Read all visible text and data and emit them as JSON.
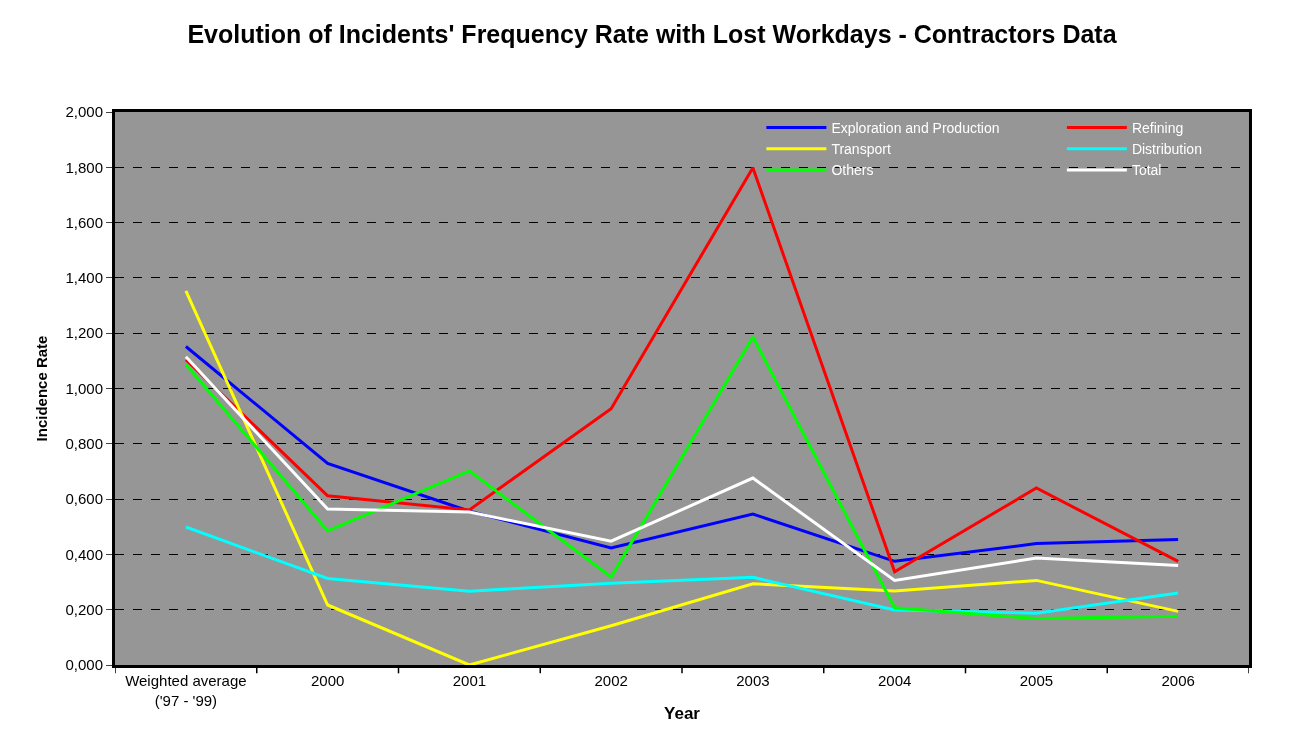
{
  "chart_data": {
    "type": "line",
    "title": "Evolution of Incidents' Frequency Rate with Lost Workdays - Contractors Data",
    "xlabel": "Year",
    "ylabel": "Incidence Rate",
    "categories": [
      "Weighted average\n('97 - '99)",
      "2000",
      "2001",
      "2002",
      "2003",
      "2004",
      "2005",
      "2006"
    ],
    "series": [
      {
        "name": "Exploration and Production",
        "color": "#0000ff",
        "values": [
          1.152,
          0.729,
          0.556,
          0.423,
          0.546,
          0.375,
          0.439,
          0.454
        ]
      },
      {
        "name": "Refining",
        "color": "#ff0000",
        "values": [
          1.104,
          0.612,
          0.561,
          0.927,
          1.798,
          0.337,
          0.64,
          0.375
        ]
      },
      {
        "name": "Transport",
        "color": "#ffff00",
        "values": [
          1.353,
          0.217,
          0.0,
          0.142,
          0.294,
          0.268,
          0.306,
          0.194
        ]
      },
      {
        "name": "Distribution",
        "color": "#00ffff",
        "values": [
          0.499,
          0.313,
          0.267,
          0.296,
          0.317,
          0.199,
          0.187,
          0.26
        ]
      },
      {
        "name": "Others",
        "color": "#00ff00",
        "values": [
          1.087,
          0.485,
          0.702,
          0.318,
          1.186,
          0.207,
          0.168,
          0.176
        ]
      },
      {
        "name": "Total",
        "color": "#ffffff",
        "values": [
          1.115,
          0.564,
          0.553,
          0.448,
          0.676,
          0.306,
          0.387,
          0.36
        ]
      }
    ],
    "ylim": [
      0,
      2
    ],
    "yticks": [
      {
        "value": 0,
        "label": "0,000"
      },
      {
        "value": 0.2,
        "label": "0,200"
      },
      {
        "value": 0.4,
        "label": "0,400"
      },
      {
        "value": 0.6,
        "label": "0,600"
      },
      {
        "value": 0.8,
        "label": "0,800"
      },
      {
        "value": 1,
        "label": "1,000"
      },
      {
        "value": 1.2,
        "label": "1,200"
      },
      {
        "value": 1.4,
        "label": "1,400"
      },
      {
        "value": 1.6,
        "label": "1,600"
      },
      {
        "value": 1.8,
        "label": "1,800"
      },
      {
        "value": 2,
        "label": "2,000"
      }
    ],
    "grid": "y",
    "legend": "top right",
    "marker": "none",
    "line_style": "solid"
  }
}
